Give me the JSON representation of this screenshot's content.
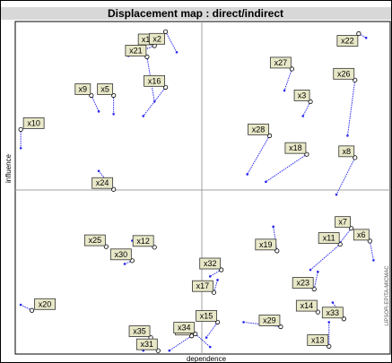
{
  "chart_data": {
    "type": "scatter",
    "title": "Displacement map : direct/indirect",
    "xlabel": "dependence",
    "ylabel": "influence",
    "right_note": "LIPSOR-EPITA-MICMAC",
    "xlim": [
      0,
      100
    ],
    "ylim": [
      0,
      100
    ],
    "grid": "center crosshair",
    "colors": {
      "frame": "#000000",
      "title_bg": "#d8d8d8",
      "cross": "#a0a0a0",
      "arrow": "#2a2aee",
      "label_bg": "#e8e8c8",
      "label_border": "#333333",
      "marker": "#000000"
    },
    "points": [
      {
        "label": "x1",
        "from": [
          37,
          93.7
        ],
        "to": [
          30,
          90.6
        ]
      },
      {
        "label": "x2",
        "from": [
          40,
          98.0
        ],
        "to": [
          43,
          91.7
        ]
      },
      {
        "label": "x21",
        "from": [
          35,
          90.3
        ],
        "to": [
          37,
          76.6
        ]
      },
      {
        "label": "x16",
        "from": [
          40,
          81.0
        ],
        "to": [
          34,
          72.2
        ]
      },
      {
        "label": "x9",
        "from": [
          20,
          78.5
        ],
        "to": [
          22,
          73.6
        ]
      },
      {
        "label": "x5",
        "from": [
          26,
          78.5
        ],
        "to": [
          26,
          72.8
        ]
      },
      {
        "label": "x10",
        "from": [
          1,
          68.1
        ],
        "to": [
          1,
          62.4
        ]
      },
      {
        "label": "x22",
        "from": [
          92,
          97.4
        ],
        "to": [
          94,
          96.1
        ]
      },
      {
        "label": "x27",
        "from": [
          74,
          86.6
        ],
        "to": [
          72,
          80.0
        ]
      },
      {
        "label": "x26",
        "from": [
          91,
          83.2
        ],
        "to": [
          89,
          66.2
        ]
      },
      {
        "label": "x3",
        "from": [
          79,
          76.6
        ],
        "to": [
          77,
          72.2
        ]
      },
      {
        "label": "x28",
        "from": [
          68,
          66.2
        ],
        "to": [
          62,
          54.4
        ]
      },
      {
        "label": "x18",
        "from": [
          78,
          60.5
        ],
        "to": [
          67,
          52.1
        ]
      },
      {
        "label": "x8",
        "from": [
          91,
          59.5
        ],
        "to": [
          86,
          48.2
        ]
      },
      {
        "label": "x24",
        "from": [
          26,
          49.8
        ],
        "to": [
          22,
          55.4
        ]
      },
      {
        "label": "x7",
        "from": [
          90,
          37.9
        ],
        "to": [
          87,
          33.5
        ]
      },
      {
        "label": "x6",
        "from": [
          95,
          34.0
        ],
        "to": [
          96,
          28.1
        ]
      },
      {
        "label": "x19",
        "from": [
          70,
          31.0
        ],
        "to": [
          69,
          38.4
        ]
      },
      {
        "label": "x11",
        "from": [
          87,
          33.0
        ],
        "to": [
          79,
          25.2
        ]
      },
      {
        "label": "x12",
        "from": [
          37,
          32.1
        ],
        "to": [
          31,
          34.1
        ]
      },
      {
        "label": "x25",
        "from": [
          24,
          32.3
        ],
        "to": [
          22,
          33.9
        ]
      },
      {
        "label": "x30",
        "from": [
          31,
          28.0
        ],
        "to": [
          29,
          27.0
        ]
      },
      {
        "label": "x32",
        "from": [
          55,
          25.2
        ],
        "to": [
          52,
          23.2
        ]
      },
      {
        "label": "x17",
        "from": [
          53,
          18.3
        ],
        "to": [
          54,
          22.1
        ]
      },
      {
        "label": "x23",
        "from": [
          80,
          19.3
        ],
        "to": [
          81,
          24.6
        ]
      },
      {
        "label": "x33",
        "from": [
          88,
          10.2
        ],
        "to": [
          85,
          15.2
        ]
      },
      {
        "label": "x14",
        "from": [
          81,
          12.3
        ],
        "to": [
          80,
          14.5
        ]
      },
      {
        "label": "x29",
        "from": [
          71,
          7.8
        ],
        "to": [
          61,
          9.2
        ]
      },
      {
        "label": "x15",
        "from": [
          54,
          9.2
        ],
        "to": [
          51,
          4.5
        ]
      },
      {
        "label": "x13",
        "from": [
          84,
          1.8
        ],
        "to": [
          84,
          9.2
        ]
      },
      {
        "label": "x20",
        "from": [
          4,
          12.8
        ],
        "to": [
          1,
          14.5
        ]
      },
      {
        "label": "x35",
        "from": [
          36,
          4.5
        ],
        "to": [
          34,
          0.5
        ]
      },
      {
        "label": "x31",
        "from": [
          38,
          0.5
        ],
        "to": [
          37,
          2.8
        ]
      },
      {
        "label": "x4",
        "from": [
          47,
          5.0
        ],
        "to": [
          41,
          0.5
        ]
      },
      {
        "label": "x34",
        "from": [
          48,
          5.6
        ],
        "to": [
          52,
          1.6
        ]
      }
    ]
  }
}
